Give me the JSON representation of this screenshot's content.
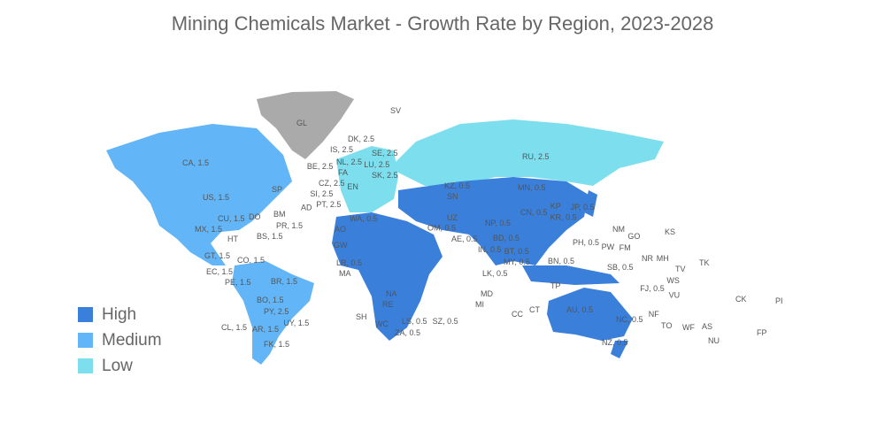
{
  "title": "Mining Chemicals Market - Growth Rate by Region, 2023-2028",
  "colors": {
    "High": "#3a7fd9",
    "Medium": "#62b5f7",
    "Low": "#7ddfee",
    "No data": "#aaaaaa"
  },
  "legend": [
    {
      "label": "High",
      "color": "#3a7fd9"
    },
    {
      "label": "Medium",
      "color": "#62b5f7"
    },
    {
      "label": "Low",
      "color": "#7ddfee"
    }
  ],
  "labels": [
    "GL",
    "IS, 2.5",
    "DK, 2.5",
    "NL, 2.5",
    "SE, 2.5",
    "FA",
    "BE, 2.5",
    "LU, 2.5",
    "SK, 2.5",
    "CZ, 2.5",
    "SI, 2.5",
    "PT, 2.5",
    "AD",
    "EN",
    "SV",
    "CA, 1.5",
    "US, 1.5",
    "SP",
    "BM",
    "DO",
    "PR, 1.5",
    "CU, 1.5",
    "MX, 1.5",
    "BS, 1.5",
    "HT",
    "GT, 1.5",
    "EC, 1.5",
    "CO, 1.5",
    "PE, 1.5",
    "BR, 1.5",
    "BO, 1.5",
    "PY, 2.5",
    "CL, 1.5",
    "AR, 1.5",
    "UY, 1.5",
    "FK, 1.5",
    "RU, 2.5",
    "KZ, 0.5",
    "MN, 0.5",
    "CN, 0.5",
    "KP",
    "KR, 0.5",
    "JP, 0.5",
    "NP, 0.5",
    "BD, 0.5",
    "IN, 0.5",
    "BT, 0.5",
    "MY, 0.5",
    "LK, 0.5",
    "BN, 0.5",
    "PH, 0.5",
    "PW",
    "FM",
    "NM",
    "GO",
    "KS",
    "NR",
    "MH",
    "SB, 0.5",
    "TV",
    "WS",
    "TK",
    "FJ, 0.5",
    "VU",
    "NC, 0.5",
    "NF",
    "TO",
    "WF",
    "AS",
    "NU",
    "CK",
    "PI",
    "FP",
    "AU, 0.5",
    "NZ, 0.5",
    "TP",
    "CC",
    "CT",
    "MD",
    "MI",
    "SH",
    "WC",
    "ZA, 0.5",
    "LS, 0.5",
    "SZ, 0.5",
    "RE",
    "NA",
    "AO",
    "WA, 0.5",
    "MA",
    "LR, 0.5",
    "GW",
    "SN",
    "UZ",
    "AE, 0.5",
    "OM, 0.5"
  ]
}
